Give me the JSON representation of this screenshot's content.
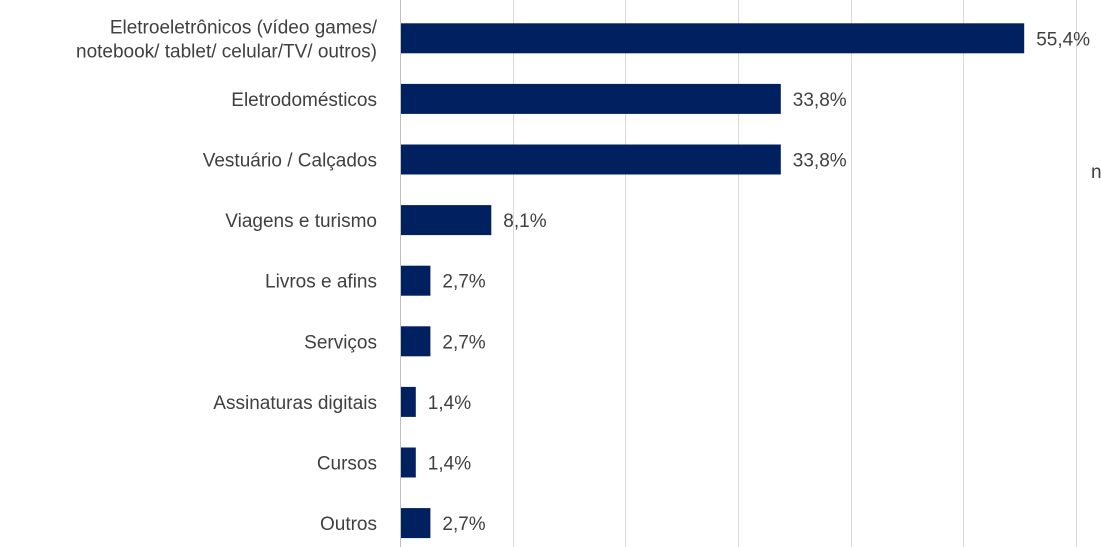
{
  "chart_data": {
    "type": "bar",
    "orientation": "horizontal",
    "categories": [
      [
        "Eletroeletrônicos (vídeo games/",
        "notebook/ tablet/ celular/TV/ outros)"
      ],
      [
        "Eletrodomésticos"
      ],
      [
        "Vestuário / Calçados"
      ],
      [
        "Viagens e turismo"
      ],
      [
        "Livros e afins"
      ],
      [
        "Serviços"
      ],
      [
        "Assinaturas digitais"
      ],
      [
        "Cursos"
      ],
      [
        "Outros"
      ]
    ],
    "values": [
      55.4,
      33.8,
      33.8,
      8.1,
      2.7,
      2.7,
      1.4,
      1.4,
      2.7
    ],
    "value_labels": [
      "55,4%",
      "33,8%",
      "33,8%",
      "8,1%",
      "2,7%",
      "2,7%",
      "1,4%",
      "1,4%",
      "2,7%"
    ],
    "xlim": [
      0,
      60
    ],
    "grid": true,
    "bar_color": "#002060",
    "grid_color": "#d9d9d9",
    "text_color": "#404040"
  },
  "stray_text": "n"
}
